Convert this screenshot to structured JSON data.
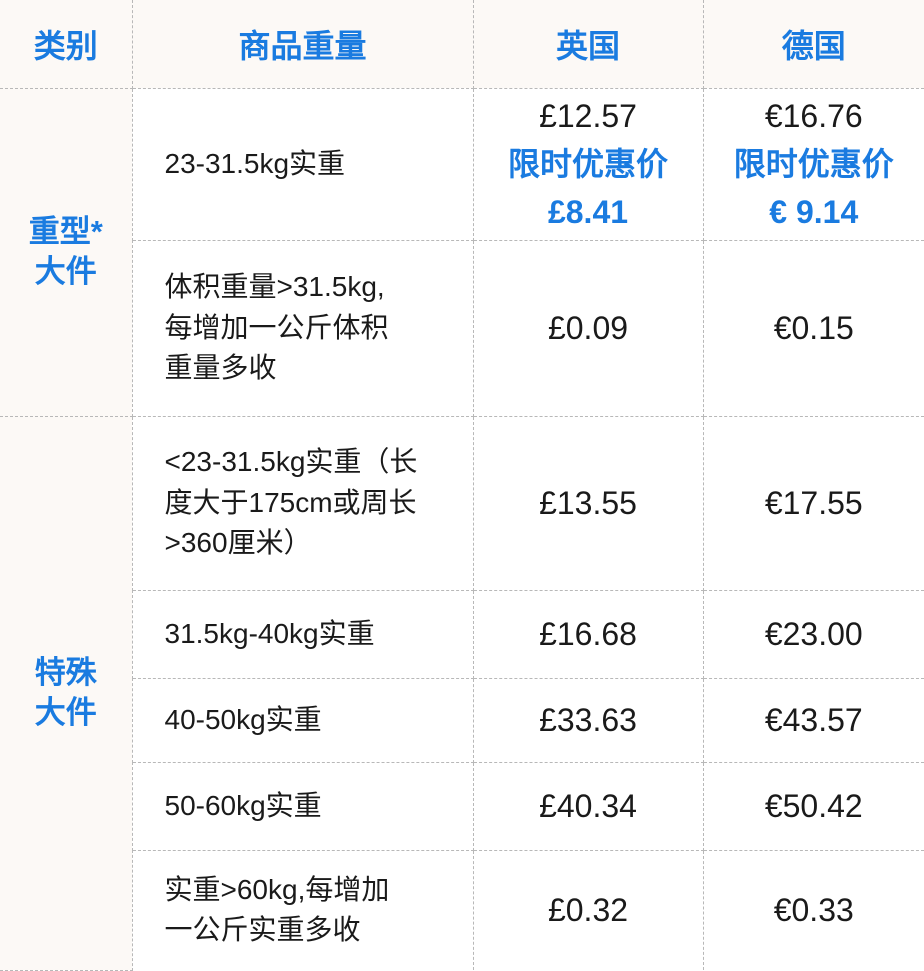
{
  "header": {
    "category": "类别",
    "weight": "商品重量",
    "uk": "英国",
    "de": "德国"
  },
  "groups": [
    {
      "category": "重型*\n大件"
    },
    {
      "category": "特殊\n大件"
    }
  ],
  "rows": [
    {
      "weight": "23-31.5kg实重",
      "uk": "£12.57",
      "uk_promo_label": "限时优惠价",
      "uk_promo": "£8.41",
      "de": "€16.76",
      "de_promo_label": "限时优惠价",
      "de_promo": "€ 9.14"
    },
    {
      "weight": "体积重量>31.5kg,\n每增加一公斤体积\n重量多收",
      "uk": "£0.09",
      "de": "€0.15"
    },
    {
      "weight": "<23-31.5kg实重（长\n度大于175cm或周长\n>360厘米）",
      "uk": "£13.55",
      "de": "€17.55"
    },
    {
      "weight": "31.5kg-40kg实重",
      "uk": "£16.68",
      "de": "€23.00"
    },
    {
      "weight": "40-50kg实重",
      "uk": "£33.63",
      "de": "€43.57"
    },
    {
      "weight": "50-60kg实重",
      "uk": "£40.34",
      "de": "€50.42"
    },
    {
      "weight": "实重>60kg,每增加\n一公斤实重多收",
      "uk": "£0.32",
      "de": "€0.33"
    }
  ],
  "colors": {
    "accent": "#1a7be0",
    "header_bg": "#fcf9f6",
    "border": "#b8b8b8"
  }
}
